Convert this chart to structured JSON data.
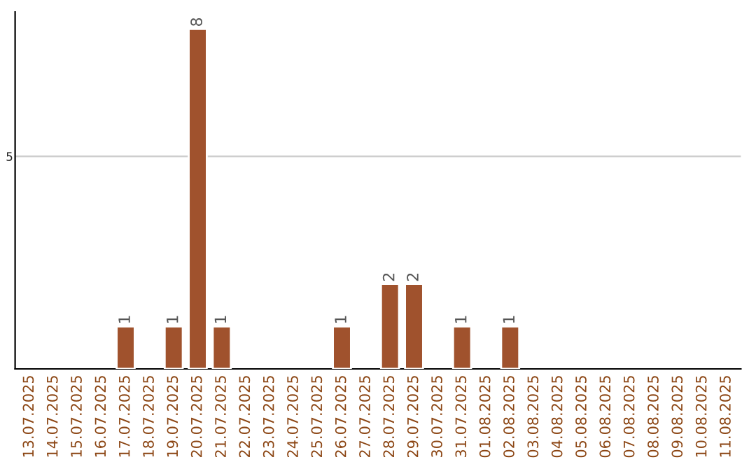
{
  "chart_data": {
    "type": "bar",
    "categories": [
      "13.07.2025",
      "14.07.2025",
      "15.07.2025",
      "16.07.2025",
      "17.07.2025",
      "18.07.2025",
      "19.07.2025",
      "20.07.2025",
      "21.07.2025",
      "22.07.2025",
      "23.07.2025",
      "24.07.2025",
      "25.07.2025",
      "26.07.2025",
      "27.07.2025",
      "28.07.2025",
      "29.07.2025",
      "30.07.2025",
      "31.07.2025",
      "01.08.2025",
      "02.08.2025",
      "03.08.2025",
      "04.08.2025",
      "05.08.2025",
      "06.08.2025",
      "07.08.2025",
      "08.08.2025",
      "09.08.2025",
      "10.08.2025",
      "11.08.2025"
    ],
    "values": [
      null,
      null,
      null,
      null,
      1,
      null,
      1,
      8,
      1,
      null,
      null,
      null,
      null,
      1,
      null,
      2,
      2,
      null,
      1,
      null,
      1,
      null,
      null,
      null,
      null,
      null,
      null,
      null,
      null,
      null
    ],
    "color": "#a0522d",
    "ylim": [
      0,
      8.4
    ],
    "yticks": [
      5
    ],
    "grid": "y",
    "data_labels": true
  }
}
